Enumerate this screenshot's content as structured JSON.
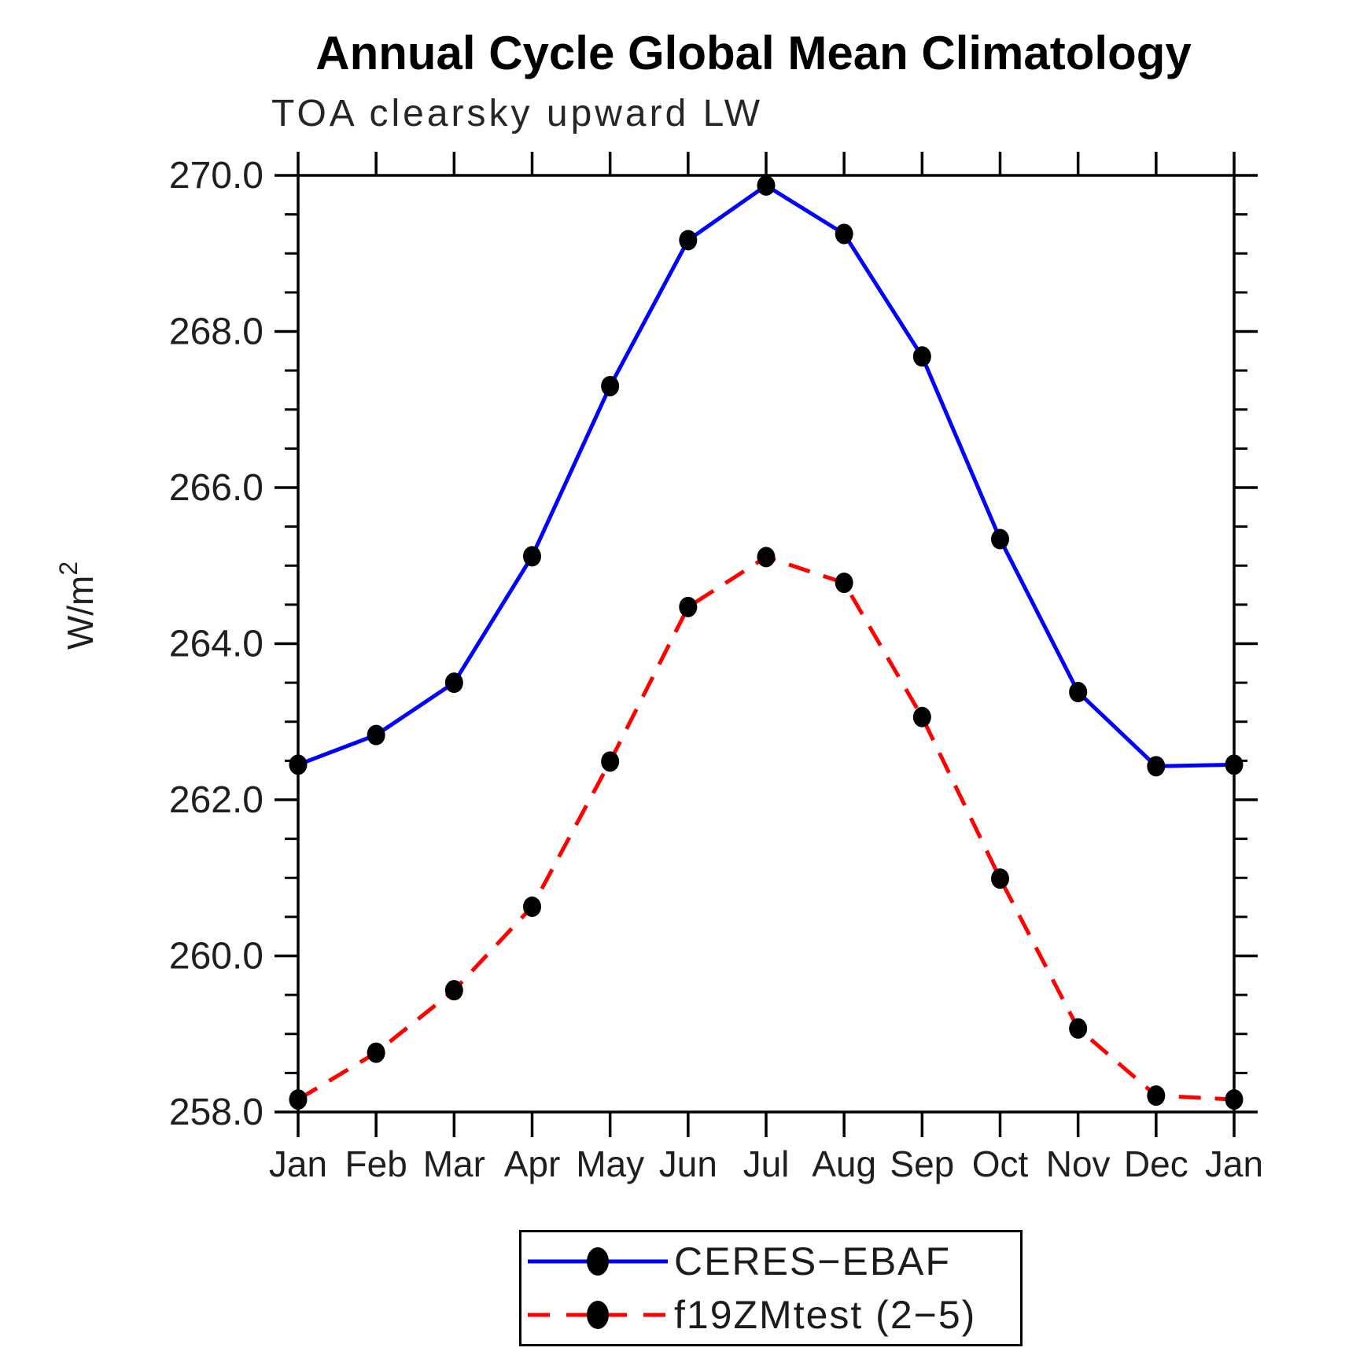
{
  "chart_data": {
    "type": "line",
    "title": "Annual Cycle Global Mean Climatology",
    "subtitle": "TOA clearsky upward LW",
    "xlabel": "",
    "ylabel": "W/m²",
    "categories": [
      "Jan",
      "Feb",
      "Mar",
      "Apr",
      "May",
      "Jun",
      "Jul",
      "Aug",
      "Sep",
      "Oct",
      "Nov",
      "Dec",
      "Jan"
    ],
    "ylim": [
      258.0,
      270.0
    ],
    "y_major_step": 2.0,
    "y_minor_step": 0.5,
    "y_tick_labels": [
      "258.0",
      "260.0",
      "262.0",
      "264.0",
      "266.0",
      "268.0",
      "270.0"
    ],
    "grid": false,
    "legend_position": "bottom-center",
    "axis_color": "#000000",
    "marker_color": "#000000",
    "series": [
      {
        "name": "CERES−EBAF",
        "color": "#0000ff",
        "style": "solid",
        "marker": "filled-circle",
        "values": [
          262.45,
          262.83,
          263.5,
          265.12,
          267.3,
          269.17,
          269.87,
          269.25,
          267.68,
          265.34,
          263.38,
          262.43,
          262.45
        ]
      },
      {
        "name": "f19ZMtest (2−5)",
        "color": "#ff0000",
        "style": "dashed",
        "marker": "filled-circle",
        "values": [
          258.16,
          258.76,
          259.56,
          260.63,
          262.49,
          264.47,
          265.11,
          264.78,
          263.06,
          260.99,
          259.07,
          258.21,
          258.16
        ]
      }
    ]
  }
}
